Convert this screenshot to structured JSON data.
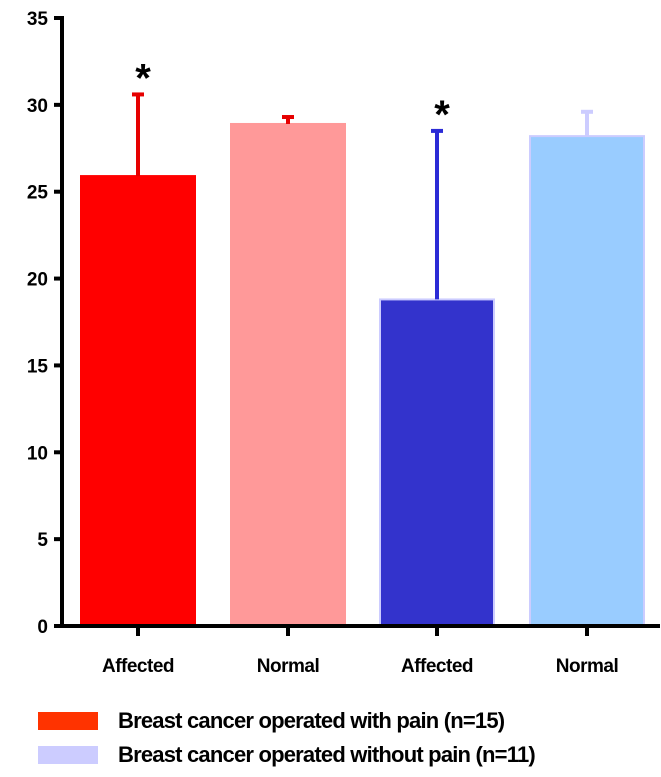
{
  "chart_data": {
    "type": "bar",
    "categories": [
      "Affected",
      "Normal",
      "Affected",
      "Normal"
    ],
    "values": [
      25.9,
      28.9,
      18.8,
      28.2
    ],
    "errors": [
      4.7,
      0.4,
      9.7,
      1.4
    ],
    "annotations": [
      "*",
      "",
      "*",
      ""
    ],
    "bar_colors": [
      "#ff0000",
      "#ff9999",
      "#3333cc",
      "#99ccff"
    ],
    "error_colors": [
      "#e60000",
      "#e60000",
      "#2b2bd6",
      "#ccccff"
    ],
    "ylim": [
      0,
      35
    ],
    "yticks": [
      0,
      5,
      10,
      15,
      20,
      25,
      30,
      35
    ],
    "ytick_labels": [
      "0",
      "5",
      "10",
      "15",
      "20",
      "25",
      "30",
      "35"
    ],
    "title": "",
    "xlabel": "",
    "ylabel": "",
    "grid": false,
    "legend_position": "bottom-left",
    "legend": [
      {
        "label": "Breast cancer operated with pain (n=15)",
        "color": "#ff3300"
      },
      {
        "label": "Breast cancer operated without pain (n=11)",
        "color": "#ccccff"
      }
    ]
  }
}
